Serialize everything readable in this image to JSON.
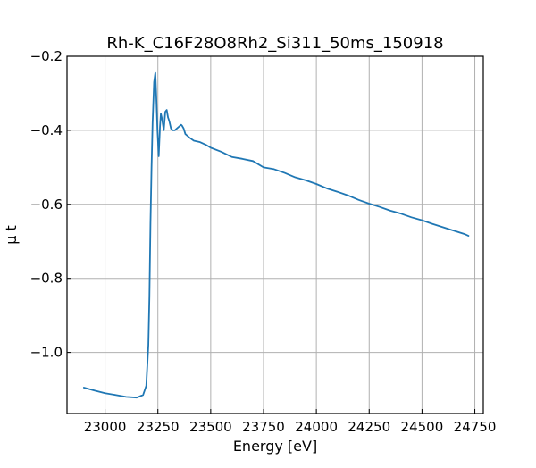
{
  "chart_data": {
    "type": "line",
    "title": "Rh-K_C16F28O8Rh2_Si311_50ms_150918",
    "xlabel": "Energy [eV]",
    "ylabel": "μ t",
    "xlim": [
      22820,
      24790
    ],
    "ylim": [
      -1.165,
      -0.2
    ],
    "xticks": [
      23000,
      23250,
      23500,
      23750,
      24000,
      24250,
      24500,
      24750
    ],
    "xtick_labels": [
      "23000",
      "23250",
      "23500",
      "23750",
      "24000",
      "24250",
      "24500",
      "24750"
    ],
    "yticks": [
      -0.2,
      -0.4,
      -0.6,
      -0.8,
      -1.0
    ],
    "ytick_labels": [
      "−0.2",
      "−0.4",
      "−0.6",
      "−0.8",
      "−1.0"
    ],
    "grid": true,
    "line_color": "#1f77b4",
    "series": [
      {
        "x": [
          22900,
          22950,
          23000,
          23050,
          23100,
          23150,
          23180,
          23195,
          23205,
          23210,
          23215,
          23220,
          23225,
          23232,
          23238,
          23242,
          23248,
          23254,
          23260,
          23264,
          23270,
          23278,
          23285,
          23292,
          23298,
          23304,
          23312,
          23320,
          23330,
          23340,
          23350,
          23360,
          23365,
          23372,
          23380,
          23390,
          23400,
          23420,
          23450,
          23480,
          23500,
          23550,
          23600,
          23650,
          23700,
          23750,
          23800,
          23850,
          23900,
          23950,
          24000,
          24050,
          24100,
          24150,
          24200,
          24250,
          24300,
          24350,
          24400,
          24450,
          24500,
          24550,
          24600,
          24650,
          24700,
          24720
        ],
        "y": [
          -1.095,
          -1.103,
          -1.11,
          -1.115,
          -1.12,
          -1.122,
          -1.115,
          -1.09,
          -0.98,
          -0.85,
          -0.65,
          -0.5,
          -0.38,
          -0.27,
          -0.245,
          -0.3,
          -0.4,
          -0.47,
          -0.39,
          -0.355,
          -0.37,
          -0.4,
          -0.35,
          -0.345,
          -0.365,
          -0.375,
          -0.395,
          -0.4,
          -0.4,
          -0.395,
          -0.39,
          -0.385,
          -0.388,
          -0.395,
          -0.41,
          -0.415,
          -0.42,
          -0.428,
          -0.432,
          -0.44,
          -0.447,
          -0.458,
          -0.472,
          -0.477,
          -0.483,
          -0.5,
          -0.505,
          -0.515,
          -0.527,
          -0.535,
          -0.545,
          -0.557,
          -0.566,
          -0.576,
          -0.588,
          -0.598,
          -0.607,
          -0.617,
          -0.625,
          -0.635,
          -0.643,
          -0.653,
          -0.662,
          -0.671,
          -0.68,
          -0.685
        ]
      }
    ]
  }
}
